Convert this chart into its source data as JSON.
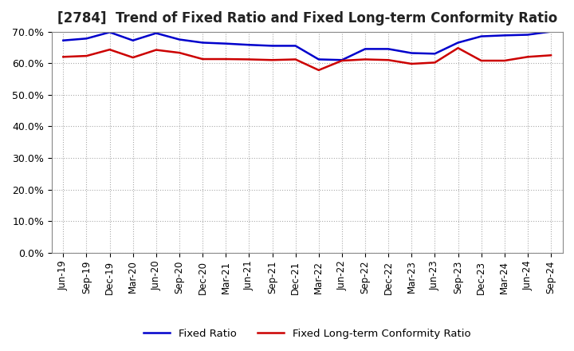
{
  "title": "[2784]  Trend of Fixed Ratio and Fixed Long-term Conformity Ratio",
  "x_labels": [
    "Jun-19",
    "Sep-19",
    "Dec-19",
    "Mar-20",
    "Jun-20",
    "Sep-20",
    "Dec-20",
    "Mar-21",
    "Jun-21",
    "Sep-21",
    "Dec-21",
    "Mar-22",
    "Jun-22",
    "Sep-22",
    "Dec-22",
    "Mar-23",
    "Jun-23",
    "Sep-23",
    "Dec-23",
    "Mar-24",
    "Jun-24",
    "Sep-24"
  ],
  "fixed_ratio": [
    67.2,
    67.8,
    69.8,
    67.2,
    69.5,
    67.5,
    66.5,
    66.2,
    65.8,
    65.5,
    65.5,
    61.2,
    61.0,
    64.5,
    64.5,
    63.2,
    63.0,
    66.5,
    68.5,
    68.8,
    69.0,
    70.0
  ],
  "fixed_lt_ratio": [
    62.0,
    62.3,
    64.3,
    61.8,
    64.2,
    63.3,
    61.3,
    61.3,
    61.2,
    61.0,
    61.2,
    57.8,
    60.8,
    61.2,
    61.0,
    59.8,
    60.2,
    64.8,
    60.8,
    60.8,
    62.0,
    62.5
  ],
  "fixed_ratio_color": "#0000CC",
  "fixed_lt_ratio_color": "#CC0000",
  "ylim": [
    0,
    70
  ],
  "yticks": [
    0,
    10,
    20,
    30,
    40,
    50,
    60,
    70
  ],
  "ytick_labels": [
    "0.0%",
    "10.0%",
    "20.0%",
    "30.0%",
    "40.0%",
    "50.0%",
    "60.0%",
    "70.0%"
  ],
  "background_color": "#FFFFFF",
  "plot_bg_color": "#FFFFFF",
  "grid_color": "#AAAAAA",
  "title_fontsize": 12,
  "legend_fixed_ratio": "Fixed Ratio",
  "legend_fixed_lt_ratio": "Fixed Long-term Conformity Ratio"
}
